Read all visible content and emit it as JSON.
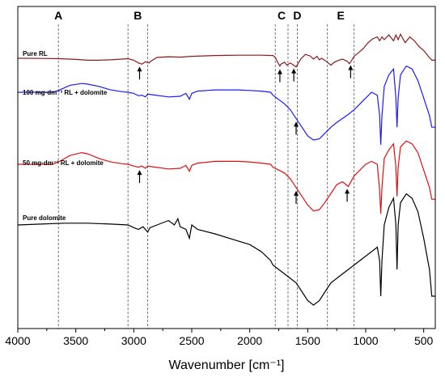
{
  "chart_data": {
    "type": "line",
    "title": "",
    "xlabel": "Wavenumber [cm⁻¹]",
    "ylabel": "",
    "xlim": [
      4000,
      400
    ],
    "x_reversed": true,
    "x_ticks": [
      4000,
      3500,
      3000,
      2500,
      2000,
      1500,
      1000,
      500
    ],
    "grid": false,
    "legend": "none",
    "bands": [
      {
        "label": "A",
        "lines": [
          3650
        ]
      },
      {
        "label": "B",
        "lines": [
          3050,
          2880
        ]
      },
      {
        "label": "C",
        "lines": [
          1780,
          1670
        ]
      },
      {
        "label": "D",
        "lines": [
          1590
        ]
      },
      {
        "label": "E",
        "lines": [
          1330,
          1100
        ]
      }
    ],
    "series": [
      {
        "name": "Pure RL",
        "color": "#8b1a1a",
        "x": [
          4000,
          3800,
          3650,
          3500,
          3400,
          3300,
          3200,
          3100,
          3050,
          3000,
          2960,
          2930,
          2900,
          2870,
          2850,
          2800,
          2700,
          2600,
          2500,
          2400,
          2300,
          2200,
          2100,
          2000,
          1900,
          1800,
          1780,
          1760,
          1740,
          1730,
          1700,
          1680,
          1650,
          1620,
          1600,
          1560,
          1520,
          1480,
          1450,
          1420,
          1400,
          1380,
          1340,
          1300,
          1270,
          1240,
          1200,
          1160,
          1140,
          1120,
          1100,
          1060,
          1020,
          980,
          940,
          900,
          880,
          860,
          840,
          800,
          760,
          740,
          720,
          700,
          660,
          620,
          580,
          540,
          500,
          460,
          430,
          400
        ],
        "y": [
          0.0,
          0.005,
          0.01,
          0.03,
          0.05,
          0.05,
          0.04,
          0.02,
          0.01,
          0.05,
          0.12,
          0.15,
          0.09,
          0.12,
          0.07,
          -0.02,
          -0.04,
          -0.03,
          -0.05,
          -0.06,
          -0.07,
          -0.075,
          -0.08,
          -0.08,
          -0.08,
          -0.07,
          -0.02,
          0.1,
          0.2,
          0.15,
          0.1,
          0.18,
          0.12,
          0.18,
          0.22,
          0.02,
          -0.1,
          -0.06,
          0.02,
          -0.05,
          0.04,
          0.0,
          0.08,
          0.18,
          0.1,
          0.06,
          0.02,
          0.08,
          0.14,
          0.05,
          -0.05,
          -0.15,
          -0.25,
          -0.4,
          -0.5,
          -0.55,
          -0.45,
          -0.55,
          -0.48,
          -0.6,
          -0.45,
          -0.6,
          -0.48,
          -0.62,
          -0.4,
          -0.55,
          -0.45,
          -0.3,
          -0.2,
          -0.05,
          0.05,
          0.05
        ]
      },
      {
        "name": "100 mg·dm⁻³ RL + dolomite",
        "color": "#1a1aff",
        "x": [
          4000,
          3800,
          3700,
          3650,
          3550,
          3450,
          3400,
          3300,
          3200,
          3100,
          3050,
          3000,
          2960,
          2930,
          2900,
          2880,
          2850,
          2700,
          2600,
          2550,
          2520,
          2500,
          2450,
          2300,
          2100,
          2000,
          1900,
          1820,
          1800,
          1700,
          1650,
          1600,
          1550,
          1500,
          1450,
          1400,
          1350,
          1300,
          1250,
          1200,
          1150,
          1100,
          1000,
          950,
          900,
          880,
          870,
          860,
          840,
          800,
          760,
          740,
          730,
          720,
          700,
          650,
          600,
          550,
          500,
          450,
          430,
          400
        ],
        "y": [
          0.0,
          0.0,
          0.0,
          -0.03,
          -0.12,
          -0.15,
          -0.14,
          -0.1,
          -0.04,
          -0.01,
          0.0,
          0.02,
          0.06,
          0.05,
          0.08,
          0.03,
          0.04,
          0.08,
          0.07,
          0.02,
          0.12,
          0.02,
          -0.02,
          -0.04,
          -0.04,
          -0.03,
          -0.02,
          0.0,
          0.05,
          0.2,
          0.3,
          0.45,
          0.6,
          0.75,
          0.82,
          0.8,
          0.7,
          0.6,
          0.52,
          0.45,
          0.38,
          0.3,
          0.1,
          0.0,
          0.05,
          0.4,
          0.9,
          0.4,
          -0.1,
          -0.3,
          -0.4,
          0.1,
          0.6,
          0.1,
          -0.3,
          -0.45,
          -0.4,
          -0.2,
          0.1,
          0.4,
          0.6,
          0.6
        ]
      },
      {
        "name": "50 mg·dm⁻³ RL + dolomite",
        "color": "#e01010",
        "x": [
          4000,
          3800,
          3700,
          3650,
          3550,
          3450,
          3400,
          3300,
          3200,
          3100,
          3050,
          3000,
          2960,
          2930,
          2900,
          2880,
          2850,
          2700,
          2600,
          2550,
          2520,
          2500,
          2450,
          2300,
          2100,
          2000,
          1900,
          1820,
          1800,
          1700,
          1650,
          1600,
          1550,
          1500,
          1450,
          1400,
          1350,
          1300,
          1250,
          1200,
          1150,
          1100,
          1000,
          950,
          900,
          880,
          870,
          860,
          840,
          800,
          760,
          740,
          730,
          720,
          700,
          650,
          600,
          550,
          500,
          450,
          430,
          400
        ],
        "y": [
          0.0,
          0.0,
          0.0,
          -0.04,
          -0.15,
          -0.2,
          -0.18,
          -0.1,
          -0.04,
          -0.01,
          0.0,
          0.03,
          0.05,
          0.03,
          0.07,
          0.03,
          0.04,
          0.08,
          0.07,
          0.02,
          0.12,
          0.02,
          -0.02,
          -0.05,
          -0.05,
          -0.04,
          -0.02,
          0.0,
          0.05,
          0.15,
          0.25,
          0.4,
          0.55,
          0.7,
          0.8,
          0.78,
          0.65,
          0.5,
          0.35,
          0.3,
          0.38,
          0.2,
          0.0,
          -0.05,
          0.0,
          0.45,
          0.85,
          0.4,
          -0.1,
          -0.25,
          -0.35,
          0.05,
          0.55,
          0.05,
          -0.3,
          -0.4,
          -0.35,
          -0.2,
          0.1,
          0.4,
          0.6,
          0.6
        ]
      },
      {
        "name": "Pure dolomite",
        "color": "#000000",
        "x": [
          4000,
          3800,
          3600,
          3400,
          3200,
          3050,
          3000,
          2960,
          2920,
          2880,
          2860,
          2800,
          2700,
          2650,
          2620,
          2600,
          2550,
          2520,
          2500,
          2450,
          2300,
          2100,
          2000,
          1900,
          1820,
          1800,
          1750,
          1700,
          1650,
          1600,
          1550,
          1500,
          1450,
          1400,
          1350,
          1300,
          1200,
          1100,
          1000,
          950,
          900,
          880,
          870,
          860,
          840,
          800,
          760,
          740,
          730,
          720,
          700,
          650,
          600,
          550,
          500,
          450,
          430,
          400
        ],
        "y": [
          0.0,
          -0.01,
          -0.02,
          -0.02,
          -0.01,
          0.0,
          0.03,
          0.05,
          0.02,
          0.08,
          0.03,
          0.0,
          -0.05,
          0.0,
          -0.07,
          0.02,
          0.05,
          0.15,
          0.0,
          0.05,
          0.1,
          0.18,
          0.22,
          0.3,
          0.4,
          0.45,
          0.5,
          0.55,
          0.6,
          0.65,
          0.75,
          0.85,
          0.9,
          0.85,
          0.75,
          0.65,
          0.55,
          0.45,
          0.35,
          0.3,
          0.25,
          0.4,
          0.8,
          0.4,
          0.0,
          -0.2,
          -0.3,
          0.0,
          0.5,
          0.0,
          -0.25,
          -0.35,
          -0.3,
          -0.15,
          0.15,
          0.5,
          0.8,
          0.8
        ]
      }
    ],
    "arrows": [
      {
        "series": "Pure RL",
        "x": 2950
      },
      {
        "series": "Pure RL",
        "x": 1740
      },
      {
        "series": "Pure RL",
        "x": 1620
      },
      {
        "series": "Pure RL",
        "x": 1130
      },
      {
        "series": "100 mg·dm⁻³ RL + dolomite",
        "x": 1600
      },
      {
        "series": "50 mg·dm⁻³ RL + dolomite",
        "x": 2950
      },
      {
        "series": "50 mg·dm⁻³ RL + dolomite",
        "x": 1600
      },
      {
        "series": "50 mg·dm⁻³ RL + dolomite",
        "x": 1160
      }
    ]
  }
}
